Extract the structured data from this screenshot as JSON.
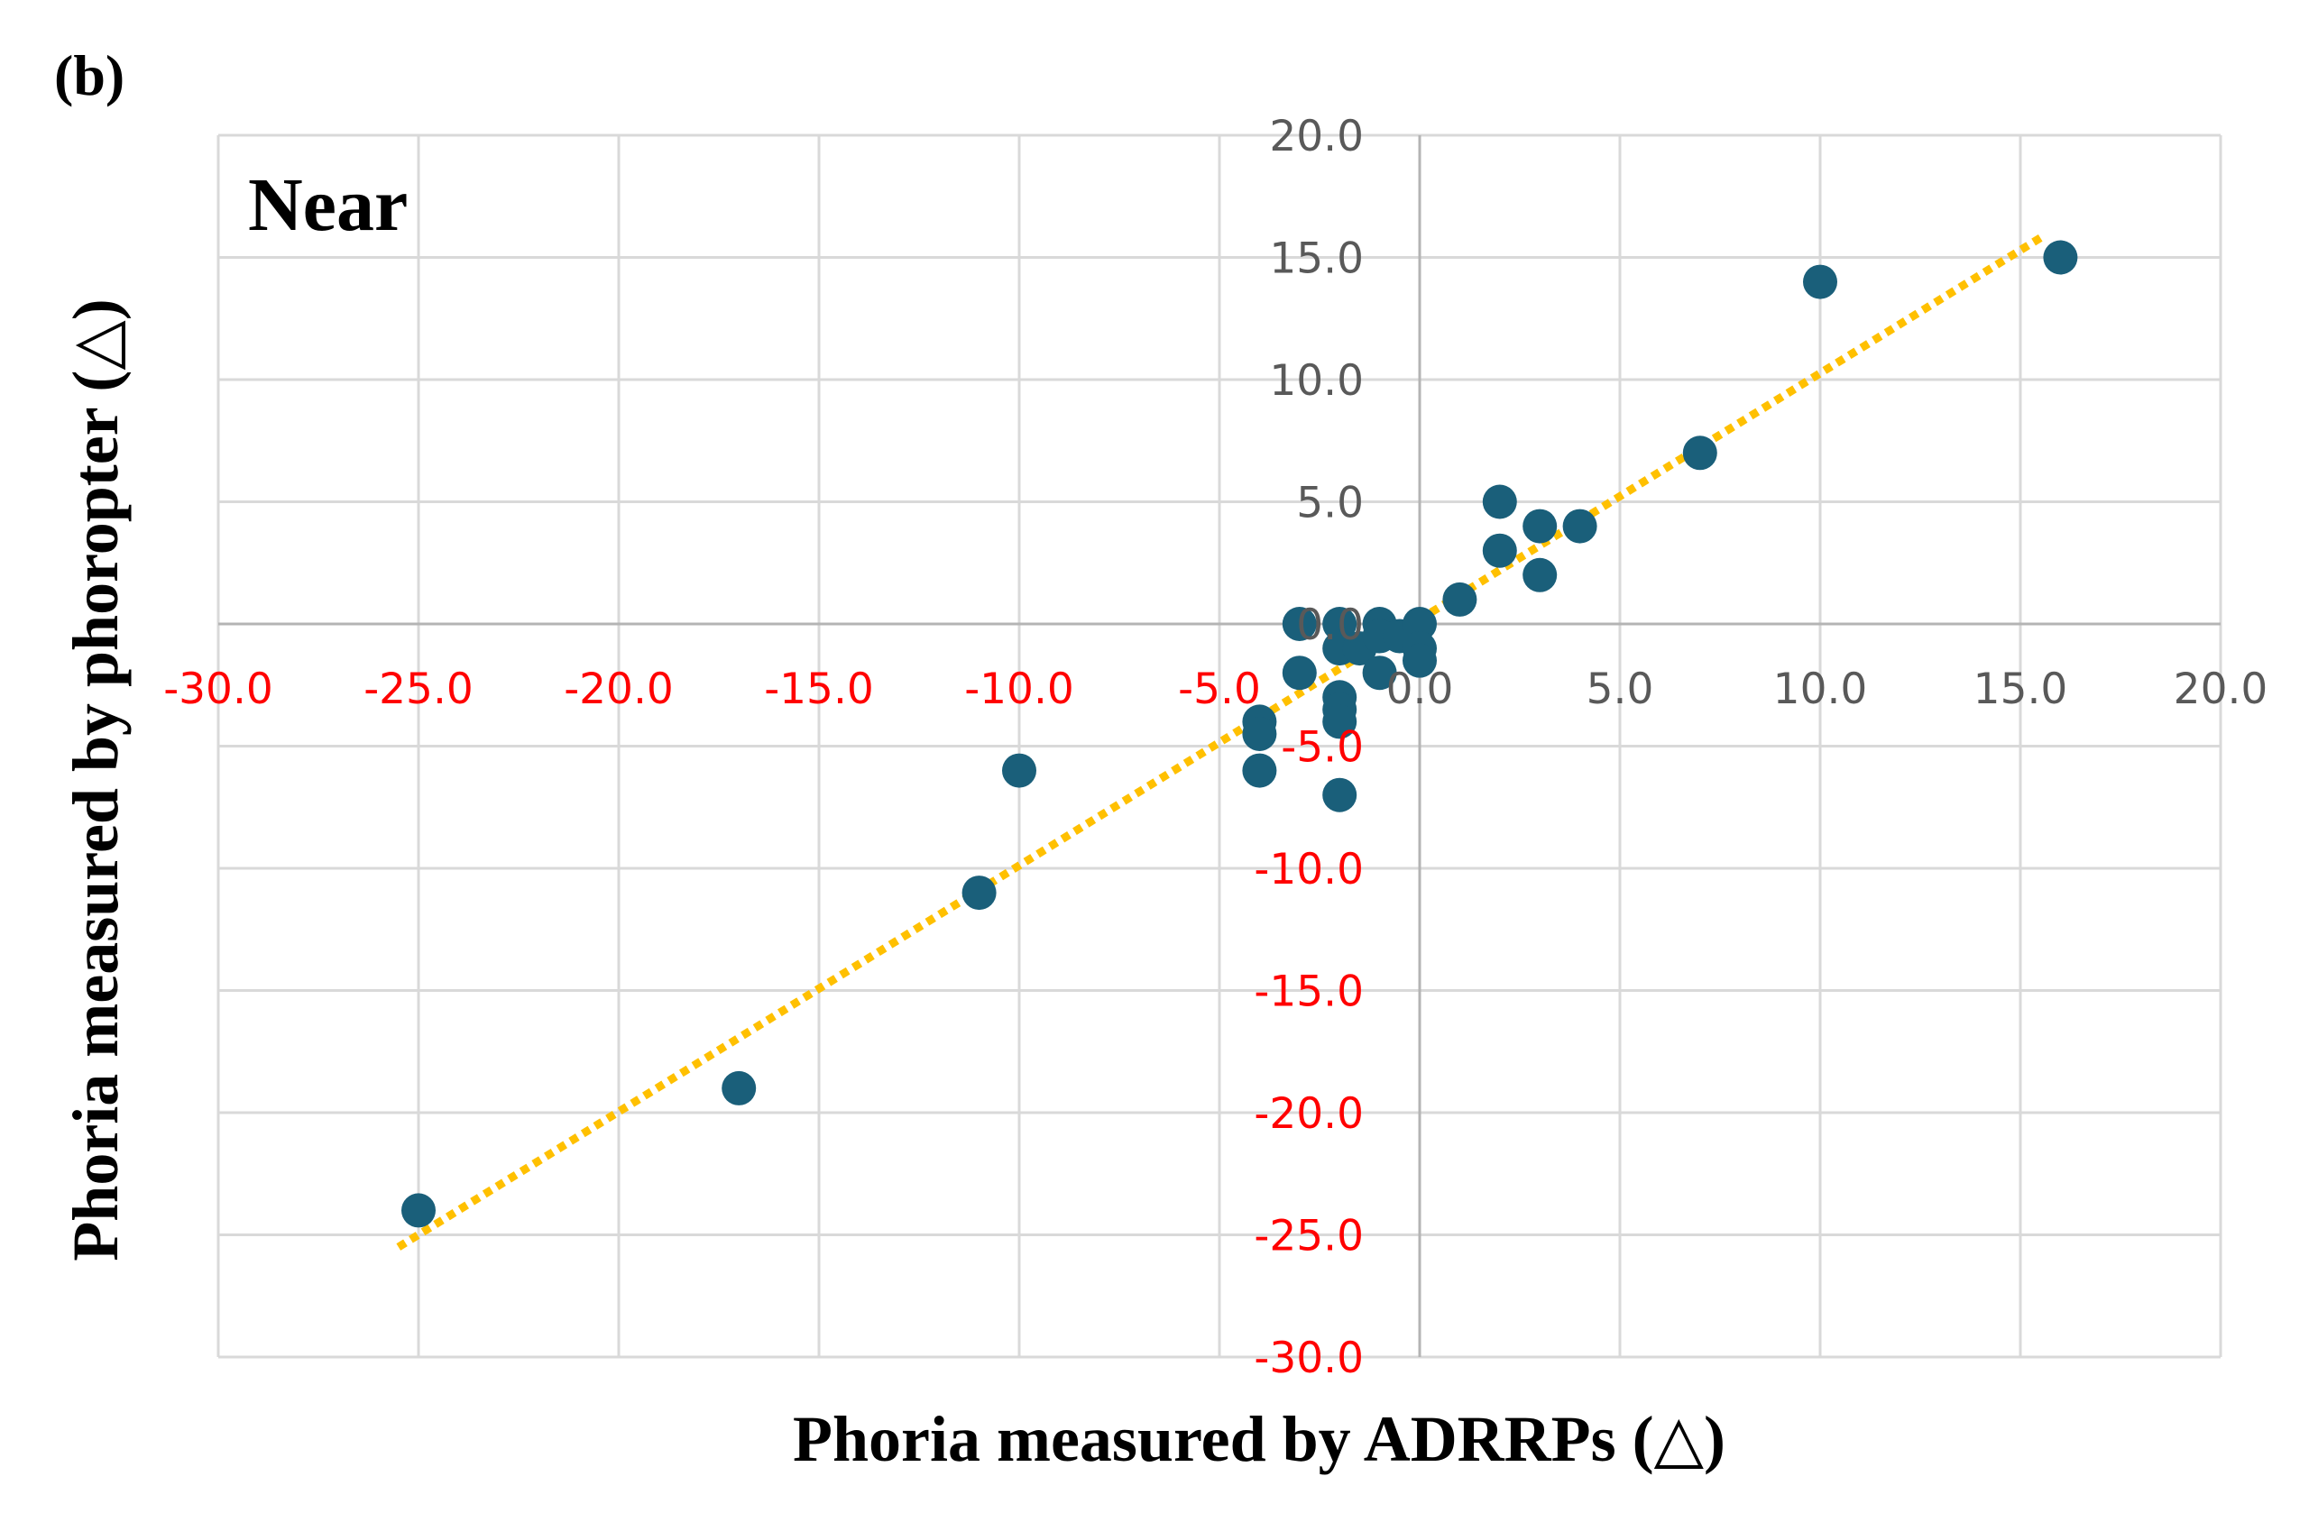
{
  "panel_label": "(b)",
  "chart_data": {
    "type": "scatter",
    "annotation": "Near",
    "xlabel": "Phoria measured by ADRRPs (△)",
    "ylabel": "Phoria measured by phoropter (△)",
    "xlim": [
      -30,
      20
    ],
    "ylim": [
      -30,
      20
    ],
    "x_ticks": [
      "-30.0",
      "-25.0",
      "-20.0",
      "-15.0",
      "-10.0",
      "-5.0",
      "0.0",
      "5.0",
      "10.0",
      "15.0",
      "20.0"
    ],
    "y_ticks": [
      "20.0",
      "15.0",
      "10.0",
      "5.0",
      "0.0",
      "-5.0",
      "-10.0",
      "-15.0",
      "-20.0",
      "-25.0",
      "-30.0"
    ],
    "grid": true,
    "negative_tick_color": "#ff0000",
    "positive_tick_color": "#595959",
    "point_color": "#1a5f7a",
    "trendline_color": "#ffc000",
    "trendline": {
      "style": "dotted",
      "x": [
        -25.5,
        15.5
      ],
      "y": [
        -25.5,
        15.8
      ]
    },
    "points": [
      {
        "x": -25,
        "y": -24
      },
      {
        "x": -17,
        "y": -19
      },
      {
        "x": -11,
        "y": -11
      },
      {
        "x": -10,
        "y": -6
      },
      {
        "x": -4,
        "y": -4
      },
      {
        "x": -4,
        "y": -4.5
      },
      {
        "x": -4,
        "y": -6
      },
      {
        "x": -3,
        "y": 0
      },
      {
        "x": -3,
        "y": -2
      },
      {
        "x": -2,
        "y": 0
      },
      {
        "x": -2,
        "y": -1
      },
      {
        "x": -2,
        "y": -3
      },
      {
        "x": -2,
        "y": -3.5
      },
      {
        "x": -2,
        "y": -4
      },
      {
        "x": -2,
        "y": -7
      },
      {
        "x": -1.5,
        "y": -1
      },
      {
        "x": -1,
        "y": 0
      },
      {
        "x": -1,
        "y": -0.5
      },
      {
        "x": -1,
        "y": -2
      },
      {
        "x": -0.5,
        "y": -0.5
      },
      {
        "x": 0,
        "y": 0
      },
      {
        "x": 0,
        "y": -1
      },
      {
        "x": 0,
        "y": -1.5
      },
      {
        "x": 1,
        "y": 1
      },
      {
        "x": 2,
        "y": 5
      },
      {
        "x": 2,
        "y": 3
      },
      {
        "x": 3,
        "y": 4
      },
      {
        "x": 3,
        "y": 2
      },
      {
        "x": 4,
        "y": 4
      },
      {
        "x": 7,
        "y": 7
      },
      {
        "x": 10,
        "y": 14
      },
      {
        "x": 16,
        "y": 15
      }
    ]
  }
}
